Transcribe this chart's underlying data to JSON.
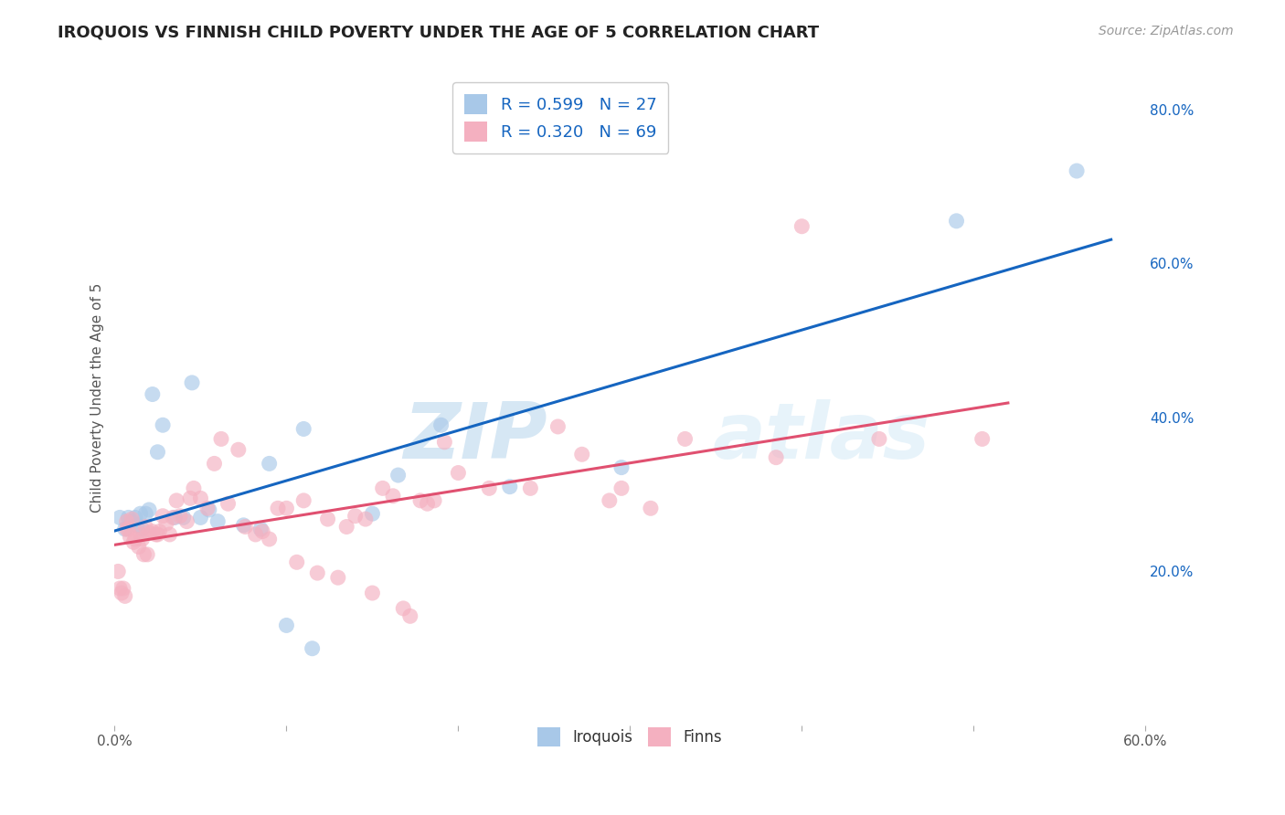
{
  "title": "IROQUOIS VS FINNISH CHILD POVERTY UNDER THE AGE OF 5 CORRELATION CHART",
  "source": "Source: ZipAtlas.com",
  "ylabel": "Child Poverty Under the Age of 5",
  "xlim": [
    0.0,
    0.6
  ],
  "ylim": [
    0.0,
    0.85
  ],
  "x_ticks": [
    0.0,
    0.1,
    0.2,
    0.3,
    0.4,
    0.5,
    0.6
  ],
  "y_ticks_right": [
    0.2,
    0.4,
    0.6,
    0.8
  ],
  "x_tick_labels": [
    "0.0%",
    "",
    "",
    "",
    "",
    "",
    "60.0%"
  ],
  "y_tick_labels_right": [
    "20.0%",
    "40.0%",
    "60.0%",
    "80.0%"
  ],
  "iroquois_color": "#a8c8e8",
  "finns_color": "#f4b0c0",
  "iroquois_scatter": [
    [
      0.003,
      0.27
    ],
    [
      0.006,
      0.255
    ],
    [
      0.008,
      0.27
    ],
    [
      0.01,
      0.265
    ],
    [
      0.012,
      0.27
    ],
    [
      0.013,
      0.26
    ],
    [
      0.015,
      0.275
    ],
    [
      0.016,
      0.255
    ],
    [
      0.018,
      0.275
    ],
    [
      0.02,
      0.28
    ],
    [
      0.022,
      0.43
    ],
    [
      0.025,
      0.355
    ],
    [
      0.028,
      0.39
    ],
    [
      0.035,
      0.27
    ],
    [
      0.04,
      0.27
    ],
    [
      0.045,
      0.445
    ],
    [
      0.05,
      0.27
    ],
    [
      0.055,
      0.28
    ],
    [
      0.06,
      0.265
    ],
    [
      0.075,
      0.26
    ],
    [
      0.085,
      0.255
    ],
    [
      0.09,
      0.34
    ],
    [
      0.1,
      0.13
    ],
    [
      0.11,
      0.385
    ],
    [
      0.115,
      0.1
    ],
    [
      0.15,
      0.275
    ],
    [
      0.165,
      0.325
    ],
    [
      0.19,
      0.39
    ],
    [
      0.23,
      0.31
    ],
    [
      0.295,
      0.335
    ],
    [
      0.49,
      0.655
    ],
    [
      0.56,
      0.72
    ]
  ],
  "finns_scatter": [
    [
      0.002,
      0.2
    ],
    [
      0.003,
      0.178
    ],
    [
      0.004,
      0.172
    ],
    [
      0.005,
      0.178
    ],
    [
      0.006,
      0.168
    ],
    [
      0.007,
      0.265
    ],
    [
      0.007,
      0.255
    ],
    [
      0.008,
      0.255
    ],
    [
      0.009,
      0.245
    ],
    [
      0.01,
      0.268
    ],
    [
      0.011,
      0.238
    ],
    [
      0.012,
      0.242
    ],
    [
      0.014,
      0.232
    ],
    [
      0.015,
      0.248
    ],
    [
      0.016,
      0.242
    ],
    [
      0.017,
      0.222
    ],
    [
      0.018,
      0.258
    ],
    [
      0.019,
      0.222
    ],
    [
      0.02,
      0.25
    ],
    [
      0.022,
      0.252
    ],
    [
      0.024,
      0.248
    ],
    [
      0.025,
      0.248
    ],
    [
      0.026,
      0.252
    ],
    [
      0.028,
      0.272
    ],
    [
      0.03,
      0.262
    ],
    [
      0.032,
      0.248
    ],
    [
      0.034,
      0.27
    ],
    [
      0.036,
      0.292
    ],
    [
      0.038,
      0.272
    ],
    [
      0.042,
      0.265
    ],
    [
      0.044,
      0.295
    ],
    [
      0.046,
      0.308
    ],
    [
      0.05,
      0.295
    ],
    [
      0.054,
      0.282
    ],
    [
      0.058,
      0.34
    ],
    [
      0.062,
      0.372
    ],
    [
      0.066,
      0.288
    ],
    [
      0.072,
      0.358
    ],
    [
      0.076,
      0.258
    ],
    [
      0.082,
      0.248
    ],
    [
      0.086,
      0.252
    ],
    [
      0.09,
      0.242
    ],
    [
      0.095,
      0.282
    ],
    [
      0.1,
      0.282
    ],
    [
      0.106,
      0.212
    ],
    [
      0.11,
      0.292
    ],
    [
      0.118,
      0.198
    ],
    [
      0.124,
      0.268
    ],
    [
      0.13,
      0.192
    ],
    [
      0.135,
      0.258
    ],
    [
      0.14,
      0.272
    ],
    [
      0.146,
      0.268
    ],
    [
      0.15,
      0.172
    ],
    [
      0.156,
      0.308
    ],
    [
      0.162,
      0.298
    ],
    [
      0.168,
      0.152
    ],
    [
      0.172,
      0.142
    ],
    [
      0.178,
      0.292
    ],
    [
      0.182,
      0.288
    ],
    [
      0.186,
      0.292
    ],
    [
      0.192,
      0.368
    ],
    [
      0.2,
      0.328
    ],
    [
      0.218,
      0.308
    ],
    [
      0.242,
      0.308
    ],
    [
      0.258,
      0.388
    ],
    [
      0.272,
      0.352
    ],
    [
      0.288,
      0.292
    ],
    [
      0.295,
      0.308
    ],
    [
      0.312,
      0.282
    ],
    [
      0.332,
      0.372
    ],
    [
      0.385,
      0.348
    ],
    [
      0.4,
      0.648
    ],
    [
      0.445,
      0.372
    ],
    [
      0.505,
      0.372
    ]
  ],
  "iroquois_line_color": "#1565c0",
  "finns_line_color": "#e05070",
  "watermark_text": "ZIP",
  "watermark_text2": "atlas",
  "background_color": "#ffffff",
  "grid_color": "#cccccc",
  "title_fontsize": 13,
  "source_fontsize": 10
}
